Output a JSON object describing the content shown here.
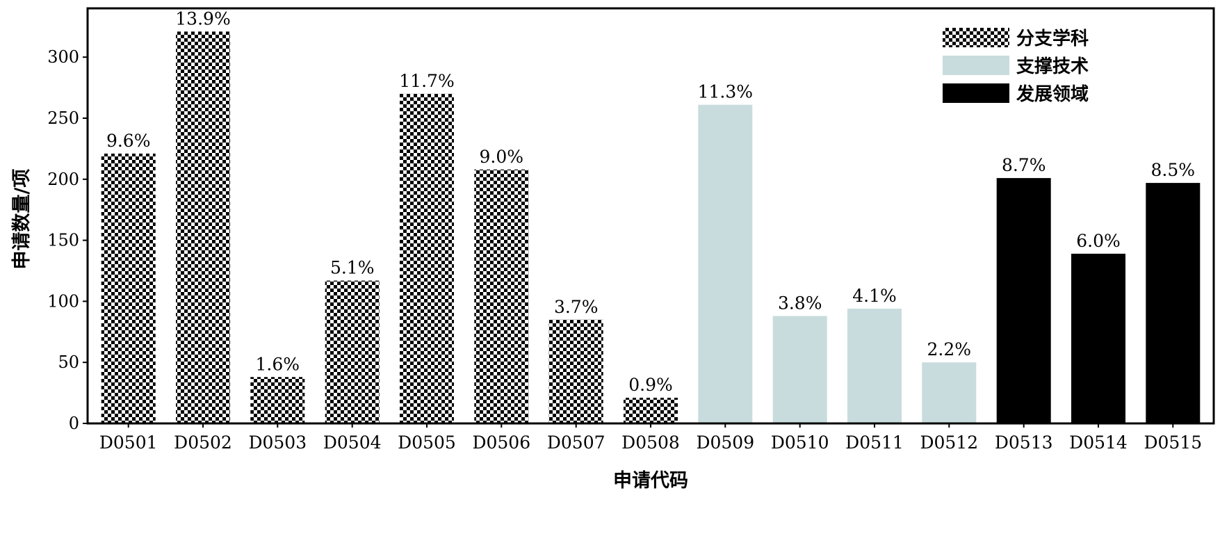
{
  "chart_data": {
    "type": "bar",
    "xlabel": "申请代码",
    "ylabel": "申请数量/项",
    "ylim": [
      0,
      340
    ],
    "yticks": [
      0,
      50,
      100,
      150,
      200,
      250,
      300
    ],
    "grid": false,
    "legend_position": "top-right",
    "categories": [
      "D0501",
      "D0502",
      "D0503",
      "D0504",
      "D0505",
      "D0506",
      "D0507",
      "D0508",
      "D0509",
      "D0510",
      "D0511",
      "D0512",
      "D0513",
      "D0514",
      "D0515"
    ],
    "values": [
      221,
      321,
      38,
      117,
      270,
      208,
      85,
      21,
      261,
      88,
      94,
      50,
      201,
      139,
      197
    ],
    "labels": [
      "9.6%",
      "13.9%",
      "1.6%",
      "5.1%",
      "11.7%",
      "9.0%",
      "3.7%",
      "0.9%",
      "11.3%",
      "3.8%",
      "4.1%",
      "2.2%",
      "8.7%",
      "6.0%",
      "8.5%"
    ],
    "groups": [
      "分支学科",
      "分支学科",
      "分支学科",
      "分支学科",
      "分支学科",
      "分支学科",
      "分支学科",
      "分支学科",
      "支撑技术",
      "支撑技术",
      "支撑技术",
      "支撑技术",
      "发展领域",
      "发展领域",
      "发展领域"
    ],
    "legend": [
      {
        "name": "分支学科",
        "style": "checkered",
        "color": "#000000"
      },
      {
        "name": "支撑技术",
        "style": "solid",
        "color": "#c9dcdd"
      },
      {
        "name": "发展领域",
        "style": "solid",
        "color": "#000000"
      }
    ]
  }
}
